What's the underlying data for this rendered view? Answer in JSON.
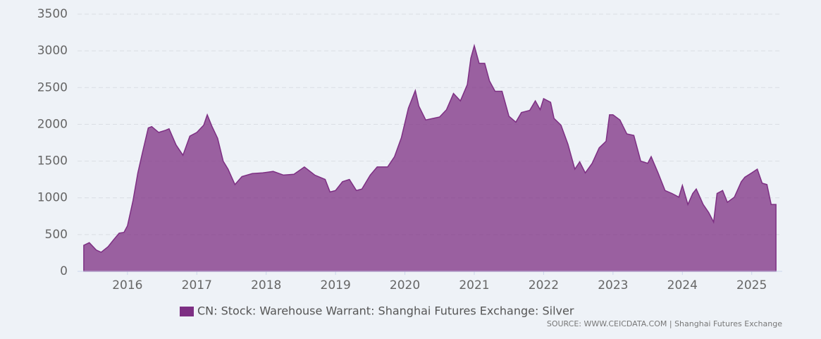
{
  "chart_data": {
    "type": "area",
    "x": [
      2015.37,
      2015.45,
      2015.55,
      2015.62,
      2015.72,
      2015.8,
      2015.88,
      2015.95,
      2016.0,
      2016.08,
      2016.15,
      2016.22,
      2016.3,
      2016.35,
      2016.45,
      2016.55,
      2016.6,
      2016.7,
      2016.8,
      2016.9,
      2017.0,
      2017.1,
      2017.15,
      2017.22,
      2017.3,
      2017.38,
      2017.45,
      2017.55,
      2017.65,
      2017.8,
      2017.95,
      2018.1,
      2018.25,
      2018.4,
      2018.55,
      2018.7,
      2018.85,
      2018.92,
      2019.0,
      2019.1,
      2019.2,
      2019.3,
      2019.38,
      2019.5,
      2019.6,
      2019.75,
      2019.85,
      2019.95,
      2020.05,
      2020.15,
      2020.2,
      2020.3,
      2020.4,
      2020.5,
      2020.6,
      2020.7,
      2020.8,
      2020.9,
      2020.95,
      2021.0,
      2021.07,
      2021.15,
      2021.22,
      2021.3,
      2021.4,
      2021.5,
      2021.6,
      2021.68,
      2021.8,
      2021.88,
      2021.95,
      2022.0,
      2022.1,
      2022.15,
      2022.25,
      2022.35,
      2022.45,
      2022.52,
      2022.6,
      2022.7,
      2022.8,
      2022.9,
      2022.95,
      2023.0,
      2023.1,
      2023.2,
      2023.3,
      2023.4,
      2023.5,
      2023.55,
      2023.65,
      2023.75,
      2023.85,
      2023.95,
      2024.0,
      2024.08,
      2024.15,
      2024.2,
      2024.3,
      2024.38,
      2024.45,
      2024.5,
      2024.58,
      2024.65,
      2024.75,
      2024.85,
      2024.9,
      2025.0,
      2025.08,
      2025.15,
      2025.22,
      2025.28,
      2025.35
    ],
    "series": [
      {
        "name": "CN: Stock: Warehouse Warrant: Shanghai Futures Exchange: Silver",
        "color": "#7d2f83",
        "values": [
          355,
          390,
          290,
          260,
          335,
          430,
          520,
          530,
          620,
          960,
          1340,
          1630,
          1950,
          1970,
          1890,
          1920,
          1940,
          1720,
          1580,
          1840,
          1890,
          1990,
          2130,
          1970,
          1810,
          1500,
          1390,
          1180,
          1290,
          1330,
          1340,
          1360,
          1310,
          1320,
          1420,
          1310,
          1250,
          1080,
          1100,
          1220,
          1250,
          1100,
          1120,
          1310,
          1420,
          1420,
          1560,
          1820,
          2220,
          2460,
          2250,
          2060,
          2080,
          2100,
          2200,
          2420,
          2320,
          2540,
          2900,
          3070,
          2830,
          2830,
          2590,
          2450,
          2450,
          2110,
          2030,
          2160,
          2190,
          2320,
          2200,
          2350,
          2300,
          2080,
          1990,
          1730,
          1390,
          1490,
          1340,
          1470,
          1680,
          1770,
          2130,
          2130,
          2060,
          1870,
          1850,
          1500,
          1470,
          1560,
          1340,
          1100,
          1060,
          1010,
          1170,
          910,
          1060,
          1120,
          910,
          800,
          670,
          1060,
          1100,
          940,
          1010,
          1220,
          1280,
          1340,
          1390,
          1200,
          1180,
          910,
          910
        ]
      }
    ],
    "xlim": [
      2015.28,
      2025.44
    ],
    "xticks": [
      2016,
      2017,
      2018,
      2019,
      2020,
      2021,
      2022,
      2023,
      2024,
      2025
    ],
    "ylim": [
      0,
      3500
    ],
    "yticks": [
      0,
      500,
      1000,
      1500,
      2000,
      2500,
      3000,
      3500
    ],
    "grid": true,
    "source": "SOURCE: WWW.CEICDATA.COM | Shanghai Futures Exchange"
  }
}
